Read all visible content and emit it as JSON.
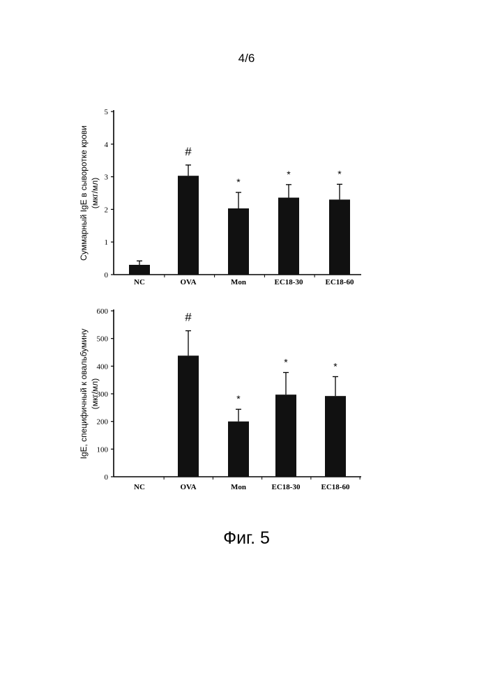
{
  "page": {
    "number": "4/6",
    "caption": "Фиг. 5"
  },
  "chart_data": [
    {
      "type": "bar",
      "categories": [
        "NC",
        "OVA",
        "Mon",
        "EC18-30",
        "EC18-60"
      ],
      "values": [
        0.3,
        3.03,
        2.03,
        2.36,
        2.3
      ],
      "errors": [
        0.12,
        0.33,
        0.49,
        0.4,
        0.47
      ],
      "significance": [
        "",
        "#",
        "*",
        "*",
        "*"
      ],
      "ylabel_line1": "Суммарный IgE в сыворотке крови",
      "ylabel_line2": "(мкг/мл)",
      "ylim": [
        0,
        5
      ],
      "yticks": [
        0,
        1,
        2,
        3,
        4,
        5
      ],
      "bar_color": "#111111",
      "grid": false,
      "legend": false
    },
    {
      "type": "bar",
      "categories": [
        "NC",
        "OVA",
        "Mon",
        "EC18-30",
        "EC18-60"
      ],
      "values": [
        0,
        438,
        200,
        297,
        292
      ],
      "errors": [
        0,
        90,
        44,
        80,
        70
      ],
      "significance": [
        "",
        "#",
        "*",
        "*",
        "*"
      ],
      "ylabel_line1": "IgE, специфичный к овальбумину",
      "ylabel_line2": "(мкг/мл)",
      "ylim": [
        0,
        600
      ],
      "yticks": [
        0,
        100,
        200,
        300,
        400,
        500,
        600
      ],
      "bar_color": "#111111",
      "grid": false,
      "legend": false
    }
  ]
}
